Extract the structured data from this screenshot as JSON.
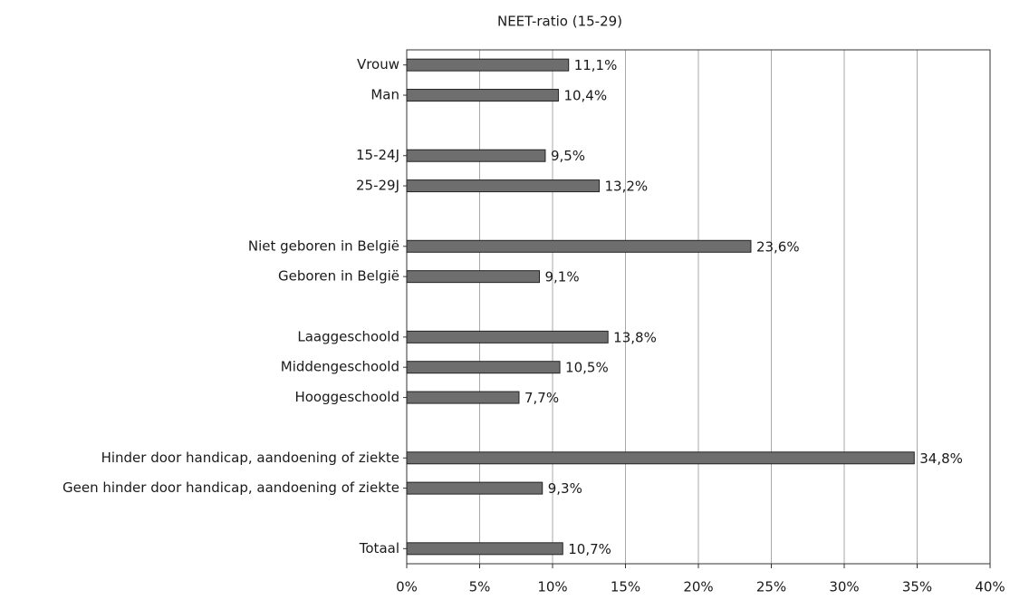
{
  "chart_data": {
    "type": "barh",
    "title": "NEET-ratio (15-29)",
    "categories": [
      "Vrouw",
      "Man",
      null,
      "15-24J",
      "25-29J",
      null,
      "Niet geboren in België",
      "Geboren in België",
      null,
      "Laaggeschoold",
      "Middengeschoold",
      "Hooggeschoold",
      null,
      "Hinder door handicap, aandoening of ziekte",
      "Geen hinder door handicap, aandoening of ziekte",
      null,
      "Totaal"
    ],
    "values": [
      11.1,
      10.4,
      null,
      9.5,
      13.2,
      null,
      23.6,
      9.1,
      null,
      13.8,
      10.5,
      7.7,
      null,
      34.8,
      9.3,
      null,
      10.7
    ],
    "value_labels": [
      "11,1%",
      "10,4%",
      null,
      "9,5%",
      "13,2%",
      null,
      "23,6%",
      "9,1%",
      null,
      "13,8%",
      "10,5%",
      "7,7%",
      null,
      "34,8%",
      "9,3%",
      null,
      "10,7%"
    ],
    "color": "#6e6e6e",
    "xlim": [
      0,
      40
    ],
    "xticks": [
      {
        "value": 0,
        "label": "0%"
      },
      {
        "value": 5,
        "label": "5%"
      },
      {
        "value": 10,
        "label": "10%"
      },
      {
        "value": 15,
        "label": "15%"
      },
      {
        "value": 20,
        "label": "20%"
      },
      {
        "value": 25,
        "label": "25%"
      },
      {
        "value": 30,
        "label": "30%"
      },
      {
        "value": 35,
        "label": "35%"
      },
      {
        "value": 40,
        "label": "40%"
      }
    ],
    "grid": true
  }
}
